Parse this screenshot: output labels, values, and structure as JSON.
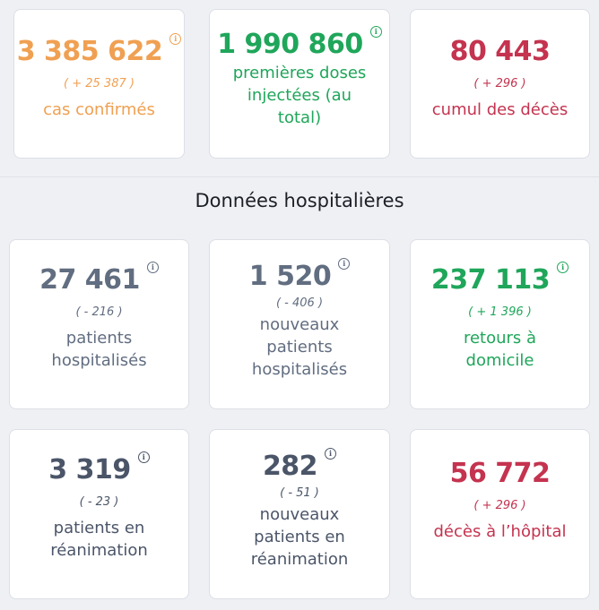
{
  "top_cards": [
    {
      "id": "cas",
      "value": "3 385 622",
      "delta": "( + 25 387 )",
      "label_lines": [
        "cas confirmés"
      ],
      "color": "#f0a052",
      "info": true
    },
    {
      "id": "doses",
      "value": "1 990 860",
      "delta": "",
      "label_lines": [
        "premières doses",
        "injectées (au",
        "total)"
      ],
      "color": "#1fa65a",
      "info": true
    },
    {
      "id": "deces",
      "value": "80 443",
      "delta": "( + 296 )",
      "label_lines": [
        "cumul des décès"
      ],
      "color": "#c4334f",
      "info": false
    }
  ],
  "section": {
    "title": "Données hospitalières"
  },
  "hosp_cards": [
    {
      "id": "hospitalises",
      "value": "27 461",
      "delta": "( - 216 )",
      "label_lines": [
        "patients",
        "hospitalisés"
      ],
      "color": "#616d80",
      "info": true
    },
    {
      "id": "nouveaux-hosp",
      "value": "1 520",
      "delta": "( - 406 )",
      "label_lines": [
        "nouveaux",
        "patients",
        "hospitalisés"
      ],
      "color": "#616d80",
      "info": true
    },
    {
      "id": "retours",
      "value": "237 113",
      "delta": "( + 1 396 )",
      "label_lines": [
        "retours à",
        "domicile"
      ],
      "color": "#1fa65a",
      "info": true
    },
    {
      "id": "reanimation",
      "value": "3 319",
      "delta": "( - 23 )",
      "label_lines": [
        "patients en",
        "réanimation"
      ],
      "color": "#4b5568",
      "info": true
    },
    {
      "id": "nouveaux-rea",
      "value": "282",
      "delta": "( - 51 )",
      "label_lines": [
        "nouveaux",
        "patients en",
        "réanimation"
      ],
      "color": "#4b5568",
      "info": true
    },
    {
      "id": "deces-hopital",
      "value": "56 772",
      "delta": "( + 296 )",
      "label_lines": [
        "décès à l’hôpital"
      ],
      "color": "#c4334f",
      "info": false
    }
  ],
  "info_icon_glyph": "i"
}
